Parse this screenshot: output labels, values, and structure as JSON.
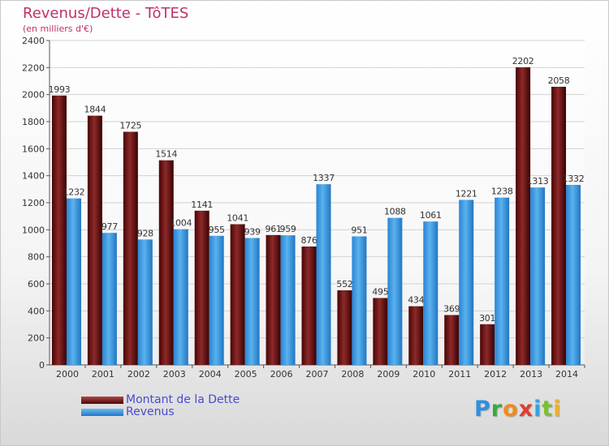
{
  "chart_data": {
    "type": "bar",
    "title": "Revenus/Dette - TôTES",
    "subtitle": "(en milliers d'€)",
    "categories": [
      "2000",
      "2001",
      "2002",
      "2003",
      "2004",
      "2005",
      "2006",
      "2007",
      "2008",
      "2009",
      "2010",
      "2011",
      "2012",
      "2013",
      "2014"
    ],
    "series": [
      {
        "name": "Montant de la Dette",
        "color": "#7a1414",
        "values": [
          1993,
          1844,
          1725,
          1514,
          1141,
          1041,
          961,
          876,
          552,
          495,
          434,
          369,
          301,
          2202,
          2058
        ]
      },
      {
        "name": "Revenus",
        "color": "#3a9ae6",
        "values": [
          1232,
          977,
          928,
          1004,
          955,
          939,
          959,
          1337,
          951,
          1088,
          1061,
          1221,
          1238,
          1313,
          1332
        ]
      }
    ],
    "ylim": [
      0,
      2400
    ],
    "yticks": [
      0,
      200,
      400,
      600,
      800,
      1000,
      1200,
      1400,
      1600,
      1800,
      2000,
      2200,
      2400
    ],
    "grid": true,
    "legend_position": "bottom-left"
  },
  "logo": {
    "letters": [
      "P",
      "r",
      "o",
      "x",
      "i",
      "t",
      "i"
    ]
  }
}
